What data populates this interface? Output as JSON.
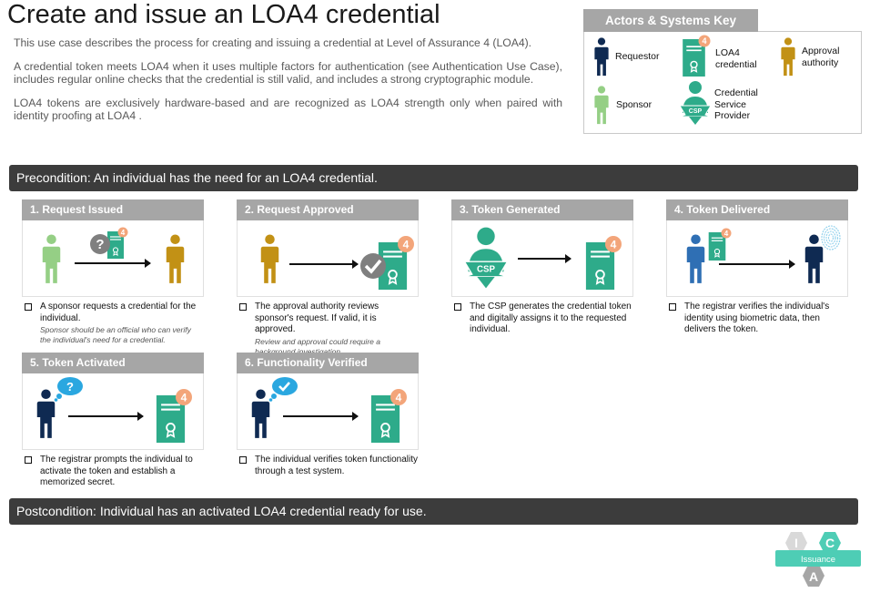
{
  "title": "Create and issue an LOA4 credential",
  "intro": [
    "This use case describes the process for creating and issuing a credential at Level of Assurance 4 (LOA4).",
    "A credential token meets LOA4 when it uses multiple factors for authentication (see Authentication Use Case), includes regular online checks that the credential is still valid, and includes a strong cryptographic module.",
    "LOA4 tokens are exclusively hardware-based and are recognized as LOA4 strength only when paired with identity proofing at LOA4 ."
  ],
  "key": {
    "heading": "Actors & Systems Key",
    "requestor": "Requestor",
    "credential": "LOA4 credential",
    "approval": "Approval authority",
    "sponsor": "Sponsor",
    "csp": "Credential Service Provider"
  },
  "precondition": "Precondition: An individual has the need for an LOA4 credential.",
  "postcondition": "Postcondition: Individual has an activated LOA4 credential ready for use.",
  "steps": [
    {
      "title": "1. Request Issued",
      "desc": "A sponsor requests a credential for the individual.",
      "note": "Sponsor should be an official who can verify the individual's need for a credential."
    },
    {
      "title": "2. Request Approved",
      "desc": "The approval authority reviews sponsor's request. If valid, it is approved.",
      "note": "Review and approval could require a background investigation."
    },
    {
      "title": "3. Token Generated",
      "desc": "The CSP generates the credential token and digitally assigns it to the requested individual.",
      "note": ""
    },
    {
      "title": "4. Token Delivered",
      "desc": "The registrar verifies the individual's identity using biometric data, then delivers the token.",
      "note": ""
    },
    {
      "title": "5. Token Activated",
      "desc": "The registrar prompts the individual to activate the token and establish a memorized secret.",
      "note": ""
    },
    {
      "title": "6. Functionality Verified",
      "desc": "The individual verifies token functionality through a test system.",
      "note": ""
    }
  ],
  "badge_number": "4",
  "csp_label": "CSP",
  "question_mark": "?",
  "logo": {
    "i": "I",
    "c": "C",
    "a": "A",
    "label": "Issuance"
  },
  "colors": {
    "requestor": "#0f2a52",
    "sponsor": "#95cf85",
    "approval": "#c29115",
    "registrar": "#2f6fb4",
    "credential": "#2eab8a",
    "badge": "#f3a57a",
    "bar": "#3c3c3c",
    "step_header": "#a6a6a6",
    "teal": "#4ecdb5"
  },
  "icons": [
    "person-icon",
    "credential-doc-icon",
    "csp-icon",
    "checkmark-icon",
    "question-icon",
    "fingerprint-icon",
    "thought-bubble-icon"
  ]
}
